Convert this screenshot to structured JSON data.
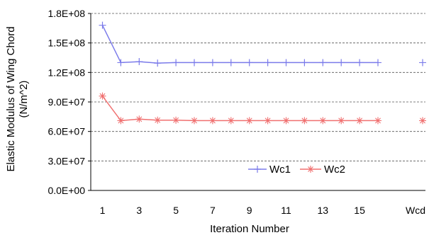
{
  "chart_data": {
    "type": "line",
    "title": "",
    "xlabel": "Iteration Number",
    "ylabel_line1": "Elastic Modulus of Wing Chord",
    "ylabel_line2": "(N/m^2)",
    "x_tick_labels": [
      "1",
      "3",
      "5",
      "7",
      "9",
      "11",
      "13",
      "15",
      "Wcd"
    ],
    "y_tick_labels": [
      "0.0E+00",
      "3.0E+07",
      "6.0E+07",
      "9.0E+07",
      "1.2E+08",
      "1.5E+08",
      "1.8E+08"
    ],
    "ylim": [
      0,
      180000000
    ],
    "grid": "horizontal dashed",
    "legend_position": "inside, lower right",
    "iterations": [
      1,
      2,
      3,
      4,
      5,
      6,
      7,
      8,
      9,
      10,
      11,
      12,
      13,
      14,
      15,
      16
    ],
    "series": [
      {
        "name": "Wc1",
        "color": "#7b7bea",
        "marker": "plus",
        "values": [
          168000000,
          130000000,
          131000000,
          129500000,
          130000000,
          130000000,
          130000000,
          130000000,
          130000000,
          130000000,
          130000000,
          130000000,
          130000000,
          130000000,
          130000000,
          130000000
        ],
        "wcd_value": 130000000
      },
      {
        "name": "Wc2",
        "color": "#f07070",
        "marker": "asterisk",
        "values": [
          96000000,
          71000000,
          72500000,
          71500000,
          71500000,
          71000000,
          71000000,
          71000000,
          71000000,
          71000000,
          71000000,
          71000000,
          71000000,
          71000000,
          71000000,
          71000000
        ],
        "wcd_value": 71000000
      }
    ]
  }
}
